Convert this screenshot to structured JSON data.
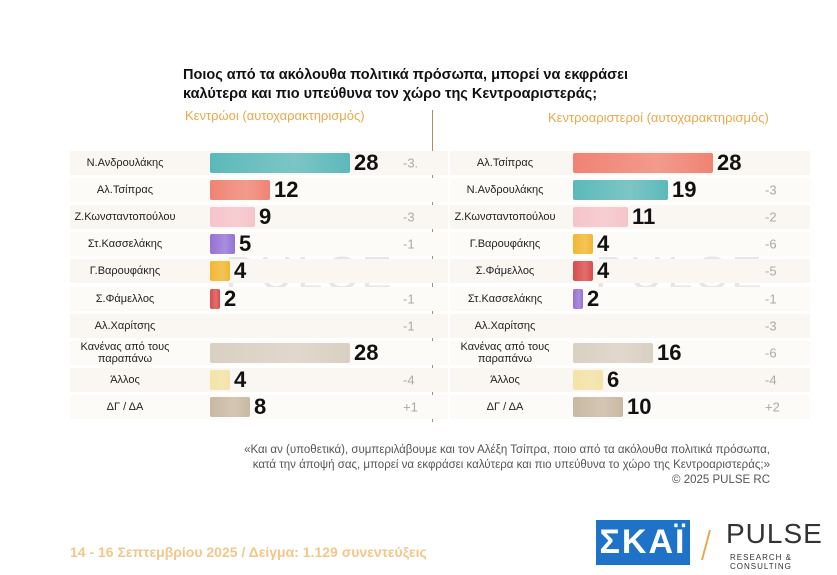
{
  "title_lines": [
    "Ποιος από τα ακόλουθα πολιτικά πρόσωπα, μπορεί να εκφράσει",
    "καλύτερα και πιο υπεύθυνα τον χώρο της Κεντροαριστεράς;"
  ],
  "chart_data": [
    {
      "type": "bar",
      "title": "Κεντρώοι (αυτοχαρακτηρισμός)",
      "categories": [
        "Ν.Ανδρουλάκης",
        "Αλ.Τσίπρας",
        "Ζ.Κωνσταντοπούλου",
        "Στ.Κασσελάκης",
        "Γ.Βαρουφάκης",
        "Σ.Φάμελλος",
        "Αλ.Χαρίτσης",
        "Κανένας από τους παραπάνω",
        "Άλλος",
        "ΔΓ / ΔΑ"
      ],
      "values": [
        28,
        12,
        9,
        5,
        4,
        2,
        null,
        28,
        4,
        8
      ],
      "changes": [
        "-3.",
        null,
        "-3",
        "-1",
        null,
        "-1",
        "-1",
        null,
        "-4",
        "+1"
      ],
      "colors": [
        "#5cb9b9",
        "#f08373",
        "#f5c4ca",
        "#9571d6",
        "#f2b730",
        "#d94c4c",
        "#cccccc",
        "#d9d0c2",
        "#f3e3a6",
        "#c9b9a2"
      ]
    },
    {
      "type": "bar",
      "title": "Κεντροαριστεροί (αυτοχαρακτηρισμός)",
      "categories": [
        "Αλ.Τσίπρας",
        "Ν.Ανδρουλάκης",
        "Ζ.Κωνσταντοπούλου",
        "Γ.Βαρουφάκης",
        "Σ.Φάμελλος",
        "Στ.Κασσελάκης",
        "Αλ.Χαρίτσης",
        "Κανένας από τους παραπάνω",
        "Άλλος",
        "ΔΓ / ΔΑ"
      ],
      "values": [
        28,
        19,
        11,
        4,
        4,
        2,
        null,
        16,
        6,
        10
      ],
      "changes": [
        null,
        "-3",
        "-2",
        "-6",
        "-5",
        "-1",
        "-3",
        "-6",
        "-4",
        "+2"
      ],
      "colors": [
        "#f08373",
        "#5cb9b9",
        "#f5c4ca",
        "#f2b730",
        "#d94c4c",
        "#9571d6",
        "#cccccc",
        "#d9d0c2",
        "#f3e3a6",
        "#c9b9a2"
      ]
    }
  ],
  "note_lines": [
    "«Και αν (υποθετικά), συμπεριλάβουμε και τον Αλέξη Τσίπρα, ποιο από τα ακόλουθα πολιτικά πρόσωπα,",
    "κατά την άποψή σας, μπορεί να εκφράσει καλύτερα και πιο υπεύθυνα το χώρο της Κεντροαριστεράς;»",
    "©  2025  PULSE RC"
  ],
  "footer": "14 - 16 Σεπτεμβρίου 2025  /  Δείγμα:  1.129 συνεντεύξεις",
  "logos": {
    "skai": "ΣΚΑΪ",
    "pulse": "PULSE",
    "pulse_sub": "RESEARCH & CONSULTING"
  }
}
